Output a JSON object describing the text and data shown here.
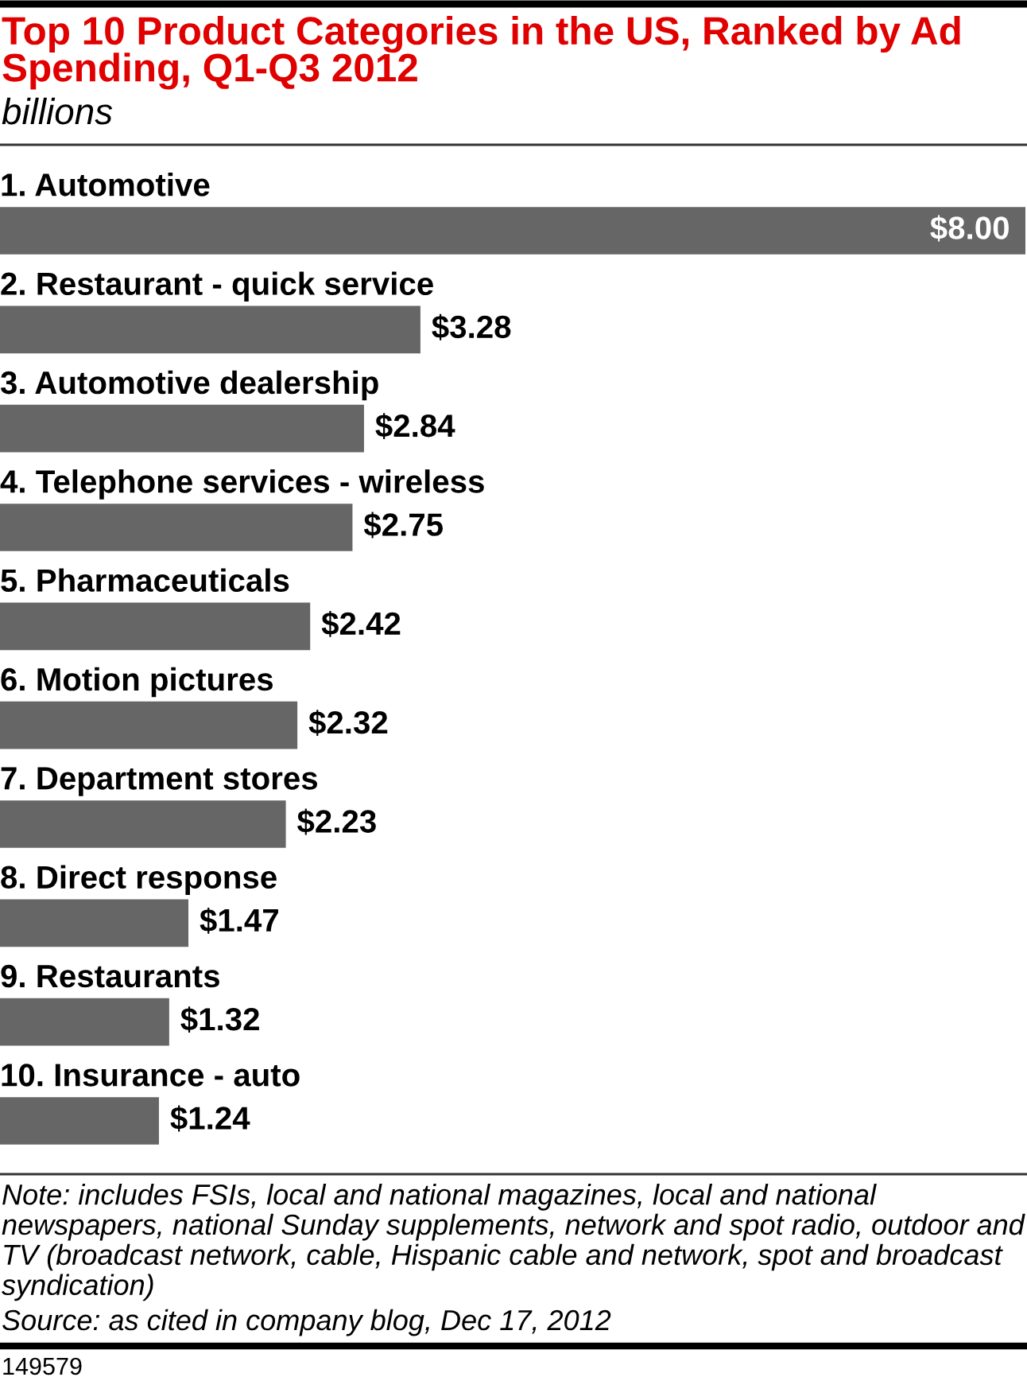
{
  "chart_data": {
    "type": "bar",
    "orientation": "horizontal",
    "title": "Top 10 Product Categories in the US, Ranked by Ad Spending, Q1-Q3 2012",
    "subtitle": "billions",
    "categories": [
      "1. Automotive",
      "2. Restaurant - quick service",
      "3. Automotive dealership",
      "4. Telephone services - wireless",
      "5. Pharmaceuticals",
      "6. Motion pictures",
      "7. Department stores",
      "8. Direct response",
      "9. Restaurants",
      "10. Insurance - auto"
    ],
    "values": [
      8.0,
      3.28,
      2.84,
      2.75,
      2.42,
      2.32,
      2.23,
      1.47,
      1.32,
      1.24
    ],
    "value_labels": [
      "$8.00",
      "$3.28",
      "$2.84",
      "$2.75",
      "$2.42",
      "$2.32",
      "$2.23",
      "$1.47",
      "$1.32",
      "$1.24"
    ],
    "color": "#666666",
    "annotations": [
      "Note: includes FSIs, local and national magazines, local and national newspapers, national Sunday supplements, network and spot radio, outdoor and TV (broadcast network, cable, Hispanic cable and network, spot and broadcast syndication)",
      "Source: as cited in company blog, Dec 17, 2012",
      "149579"
    ]
  }
}
